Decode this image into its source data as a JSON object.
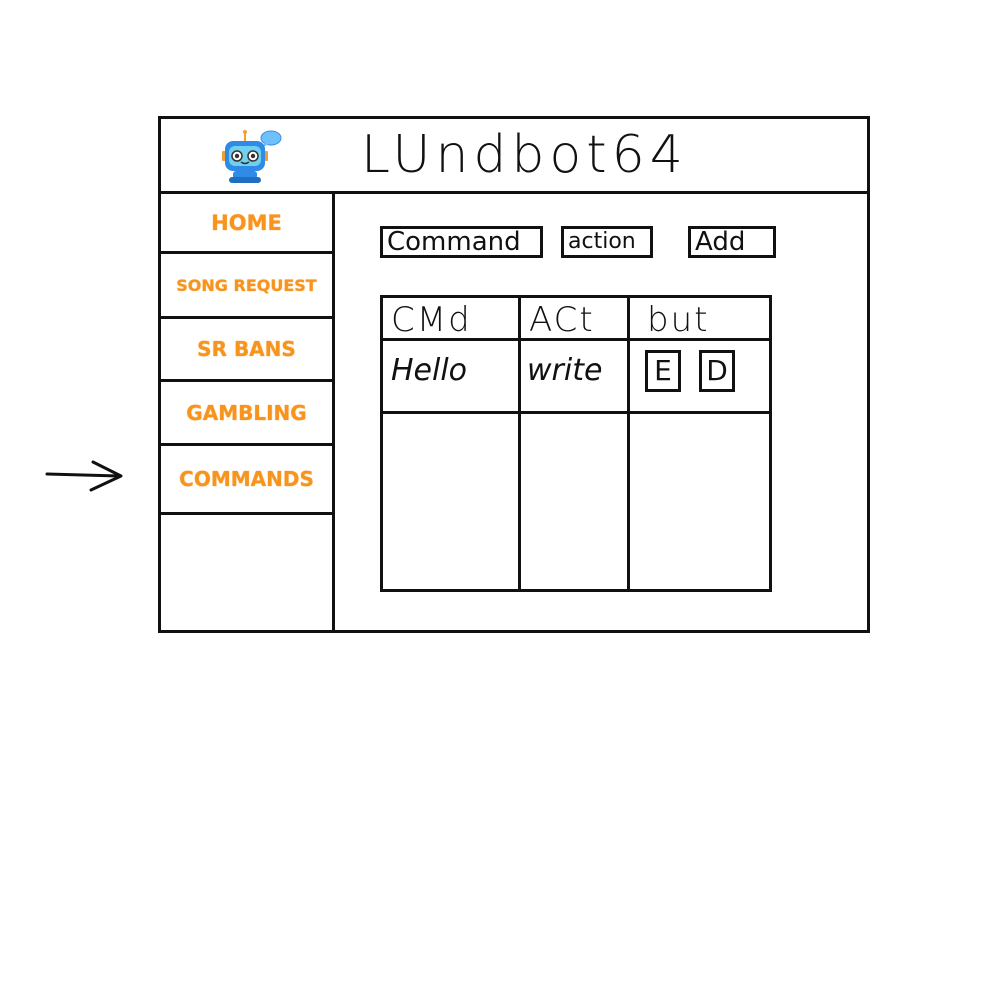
{
  "app": {
    "title": "LUndbot64"
  },
  "sidebar": {
    "items": [
      {
        "label": "HOME"
      },
      {
        "label": "SONG REQUEST"
      },
      {
        "label": "SR BANS"
      },
      {
        "label": "GAMBLING"
      },
      {
        "label": "COMMANDS",
        "active": true
      }
    ]
  },
  "form": {
    "command_value": "Command",
    "action_value": "action",
    "add_label": "Add"
  },
  "table": {
    "headers": [
      "CMd",
      "ACt",
      "but"
    ],
    "rows": [
      {
        "command": "Hello",
        "action": "write",
        "edit_label": "E",
        "delete_label": "D"
      }
    ]
  },
  "colors": {
    "nav_text": "#f7941d",
    "ink": "#111111"
  }
}
